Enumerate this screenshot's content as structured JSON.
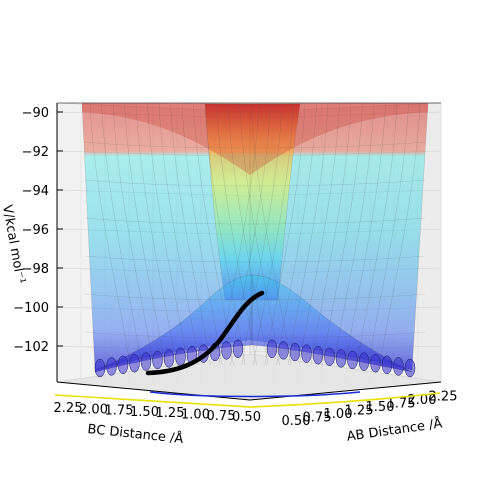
{
  "chart_data": {
    "type": "surface",
    "zlabel": "V/kcal mol⁻¹",
    "xlabel": "AB Distance /Å",
    "ylabel": "BC Distance /Å",
    "z_ticks": [
      "−90",
      "−92",
      "−94",
      "−96",
      "−98",
      "−100",
      "−102"
    ],
    "ab_ticks": [
      "0.50",
      "0.75",
      "1.00",
      "1.25",
      "1.50",
      "1.75",
      "2.00",
      "2.25"
    ],
    "bc_ticks": [
      "2.25",
      "2.00",
      "1.75",
      "1.50",
      "1.25",
      "1.00",
      "0.75",
      "0.50"
    ],
    "zlim": [
      -104,
      -90
    ],
    "ab_range": [
      0.5,
      2.25
    ],
    "bc_range": [
      0.5,
      2.25
    ],
    "colormap": "jet",
    "surface_alpha": 0.35,
    "grid": true,
    "trajectory": {
      "color": "#000000",
      "v_start": -103.7,
      "v_end": -99.6
    }
  }
}
